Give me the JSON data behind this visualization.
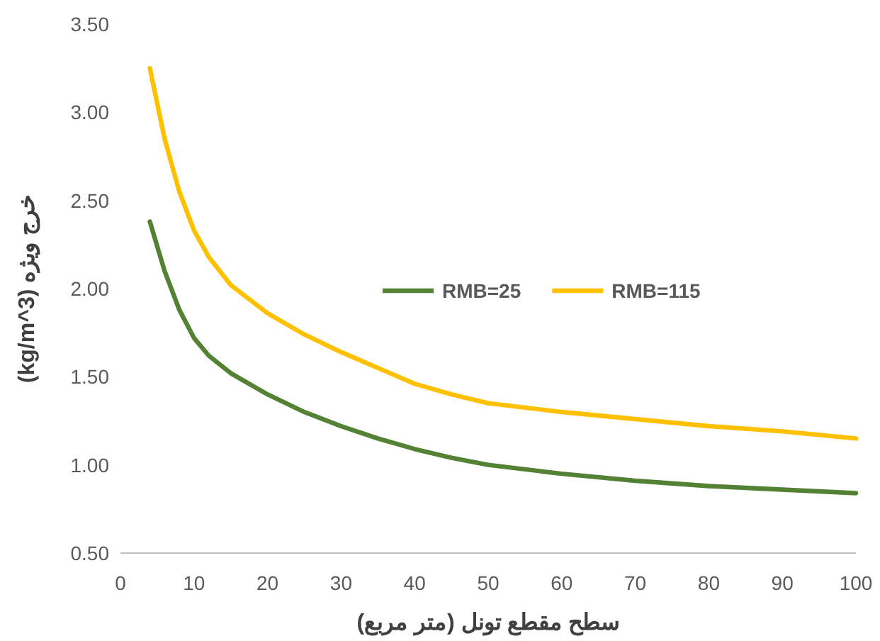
{
  "chart_data": {
    "type": "line",
    "xlabel": "سطح مقطع تونل (متر مربع)",
    "ylabel": "(kg/m^3) خرج ویژه",
    "x": [
      4,
      6,
      8,
      10,
      12,
      15,
      20,
      25,
      30,
      35,
      40,
      45,
      50,
      60,
      70,
      80,
      90,
      100
    ],
    "series": [
      {
        "name": "RMB=25",
        "color": "#548235",
        "values": [
          2.38,
          2.1,
          1.88,
          1.72,
          1.62,
          1.52,
          1.4,
          1.3,
          1.22,
          1.15,
          1.09,
          1.04,
          1.0,
          0.95,
          0.91,
          0.88,
          0.86,
          0.84
        ]
      },
      {
        "name": "RMB=115",
        "color": "#ffc000",
        "values": [
          3.25,
          2.85,
          2.55,
          2.33,
          2.18,
          2.02,
          1.86,
          1.74,
          1.64,
          1.55,
          1.46,
          1.4,
          1.35,
          1.3,
          1.26,
          1.22,
          1.19,
          1.15
        ]
      }
    ],
    "xlim": [
      0,
      100
    ],
    "ylim": [
      0.5,
      3.5
    ],
    "xticks": [
      0,
      10,
      20,
      30,
      40,
      50,
      60,
      70,
      80,
      90,
      100
    ],
    "yticks": [
      {
        "value": 0.5,
        "label": "0.50"
      },
      {
        "value": 1,
        "label": "1.00"
      },
      {
        "value": 1.5,
        "label": "1.50"
      },
      {
        "value": 2,
        "label": "2.00"
      },
      {
        "value": 2.5,
        "label": "2.50"
      },
      {
        "value": 3,
        "label": "3.00"
      },
      {
        "value": 3.5,
        "label": "3.50"
      }
    ],
    "legend": "center"
  }
}
